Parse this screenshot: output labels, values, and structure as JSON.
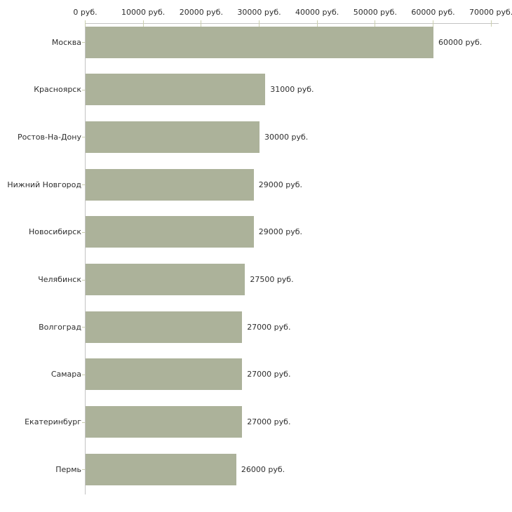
{
  "chart_data": {
    "type": "bar",
    "orientation": "horizontal",
    "categories": [
      "Москва",
      "Красноярск",
      "Ростов-На-Дону",
      "Нижний Новгород",
      "Новосибирск",
      "Челябинск",
      "Волгоград",
      "Самара",
      "Екатеринбург",
      "Пермь"
    ],
    "values": [
      60000,
      31000,
      30000,
      29000,
      29000,
      27500,
      27000,
      27000,
      27000,
      26000
    ],
    "value_labels": [
      "60000 руб.",
      "31000 руб.",
      "30000 руб.",
      "29000 руб.",
      "29000 руб.",
      "27500 руб.",
      "27000 руб.",
      "27000 руб.",
      "27000 руб.",
      "26000 руб."
    ],
    "x_ticks": [
      0,
      10000,
      20000,
      30000,
      40000,
      50000,
      60000,
      70000
    ],
    "x_tick_labels": [
      "0 руб.",
      "10000 руб.",
      "20000 руб.",
      "30000 руб.",
      "40000 руб.",
      "50000 руб.",
      "60000 руб.",
      "70000 руб."
    ],
    "xlim": [
      0,
      70000
    ],
    "x_axis_position": "top",
    "grid": false,
    "legend": null,
    "colors": {
      "bar_fill": "#acb29a",
      "axis_line": "#c3c3c3",
      "tick_mark": "#cbcfae",
      "text": "#2e2e2e",
      "background": "#ffffff"
    }
  }
}
